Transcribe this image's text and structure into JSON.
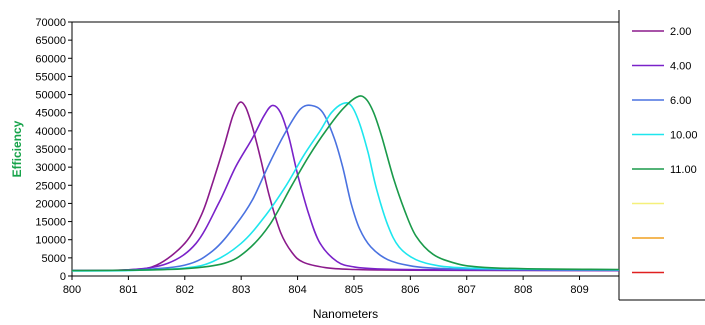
{
  "chart_data": {
    "type": "line",
    "title": "",
    "xlabel": "Nanometers",
    "ylabel": "Efficiency",
    "ylabel_color": "#16a34a",
    "xlim": [
      800,
      809.7
    ],
    "ylim": [
      0,
      70000
    ],
    "x_ticks": [
      "800",
      "801",
      "802",
      "803",
      "804",
      "805",
      "806",
      "807",
      "808",
      "809"
    ],
    "y_ticks": [
      "0",
      "5000",
      "10000",
      "15000",
      "20000",
      "25000",
      "30000",
      "35000",
      "40000",
      "45000",
      "50000",
      "55000",
      "60000",
      "65000",
      "70000"
    ],
    "grid": false,
    "legend_position": "right",
    "series": [
      {
        "name": "2.00",
        "color": "#8b1a8b",
        "points": [
          [
            800,
            1500
          ],
          [
            801,
            1700
          ],
          [
            801.5,
            3000
          ],
          [
            802,
            9000
          ],
          [
            802.3,
            17000
          ],
          [
            802.5,
            26000
          ],
          [
            802.7,
            36000
          ],
          [
            802.85,
            44000
          ],
          [
            802.97,
            47800
          ],
          [
            803.08,
            46500
          ],
          [
            803.2,
            41000
          ],
          [
            803.35,
            32000
          ],
          [
            803.5,
            22000
          ],
          [
            803.7,
            12000
          ],
          [
            803.9,
            6500
          ],
          [
            804.1,
            3800
          ],
          [
            804.5,
            2300
          ],
          [
            805,
            1800
          ],
          [
            806,
            1600
          ],
          [
            809.7,
            1500
          ]
        ]
      },
      {
        "name": "4.00",
        "color": "#7a22c9",
        "points": [
          [
            800,
            1500
          ],
          [
            801,
            1700
          ],
          [
            801.7,
            3500
          ],
          [
            802.2,
            9000
          ],
          [
            802.6,
            20000
          ],
          [
            802.9,
            30000
          ],
          [
            803.2,
            38000
          ],
          [
            803.4,
            44000
          ],
          [
            803.55,
            47000
          ],
          [
            803.7,
            45000
          ],
          [
            803.85,
            38000
          ],
          [
            804,
            28000
          ],
          [
            804.2,
            17000
          ],
          [
            804.4,
            9000
          ],
          [
            804.7,
            4000
          ],
          [
            805,
            2500
          ],
          [
            805.5,
            1900
          ],
          [
            806.5,
            1700
          ],
          [
            809.7,
            1500
          ]
        ]
      },
      {
        "name": "6.00",
        "color": "#4a72e0",
        "points": [
          [
            800,
            1500
          ],
          [
            801,
            1600
          ],
          [
            802,
            3000
          ],
          [
            802.5,
            7000
          ],
          [
            802.9,
            14000
          ],
          [
            803.2,
            21000
          ],
          [
            803.5,
            31000
          ],
          [
            803.8,
            40000
          ],
          [
            804.05,
            46000
          ],
          [
            804.25,
            47000
          ],
          [
            804.45,
            45000
          ],
          [
            804.65,
            38000
          ],
          [
            804.8,
            30000
          ],
          [
            804.95,
            20000
          ],
          [
            805.1,
            13000
          ],
          [
            805.3,
            8000
          ],
          [
            805.6,
            4500
          ],
          [
            806,
            2800
          ],
          [
            806.5,
            2100
          ],
          [
            807.5,
            1800
          ],
          [
            809.7,
            1600
          ]
        ]
      },
      {
        "name": "10.00",
        "color": "#1ee6ee",
        "points": [
          [
            800,
            1400
          ],
          [
            801,
            1500
          ],
          [
            802,
            2200
          ],
          [
            802.5,
            4000
          ],
          [
            803,
            9000
          ],
          [
            803.4,
            16000
          ],
          [
            803.8,
            25000
          ],
          [
            804.1,
            33000
          ],
          [
            804.4,
            40000
          ],
          [
            804.6,
            45000
          ],
          [
            804.8,
            47500
          ],
          [
            804.95,
            47000
          ],
          [
            805.1,
            42000
          ],
          [
            805.25,
            34000
          ],
          [
            805.4,
            24000
          ],
          [
            805.6,
            14000
          ],
          [
            805.8,
            8000
          ],
          [
            806.1,
            4500
          ],
          [
            806.5,
            2800
          ],
          [
            807,
            2200
          ],
          [
            808,
            1900
          ],
          [
            809.7,
            1700
          ]
        ]
      },
      {
        "name": "11.00",
        "color": "#1a9a4a",
        "points": [
          [
            800,
            1500
          ],
          [
            801,
            1600
          ],
          [
            802,
            2000
          ],
          [
            802.7,
            3500
          ],
          [
            803.1,
            7000
          ],
          [
            803.5,
            14000
          ],
          [
            803.9,
            25000
          ],
          [
            804.2,
            33000
          ],
          [
            804.5,
            40000
          ],
          [
            804.8,
            46000
          ],
          [
            805.05,
            49300
          ],
          [
            805.2,
            49000
          ],
          [
            805.35,
            45000
          ],
          [
            805.5,
            38000
          ],
          [
            805.7,
            27000
          ],
          [
            805.9,
            18000
          ],
          [
            806.1,
            11000
          ],
          [
            806.4,
            6000
          ],
          [
            806.8,
            3500
          ],
          [
            807.2,
            2500
          ],
          [
            808,
            2000
          ],
          [
            809.7,
            1800
          ]
        ]
      },
      {
        "name": "",
        "color": "#f5f07a",
        "points": []
      },
      {
        "name": "",
        "color": "#f0a020",
        "points": []
      },
      {
        "name": "",
        "color": "#e02020",
        "points": []
      }
    ]
  }
}
